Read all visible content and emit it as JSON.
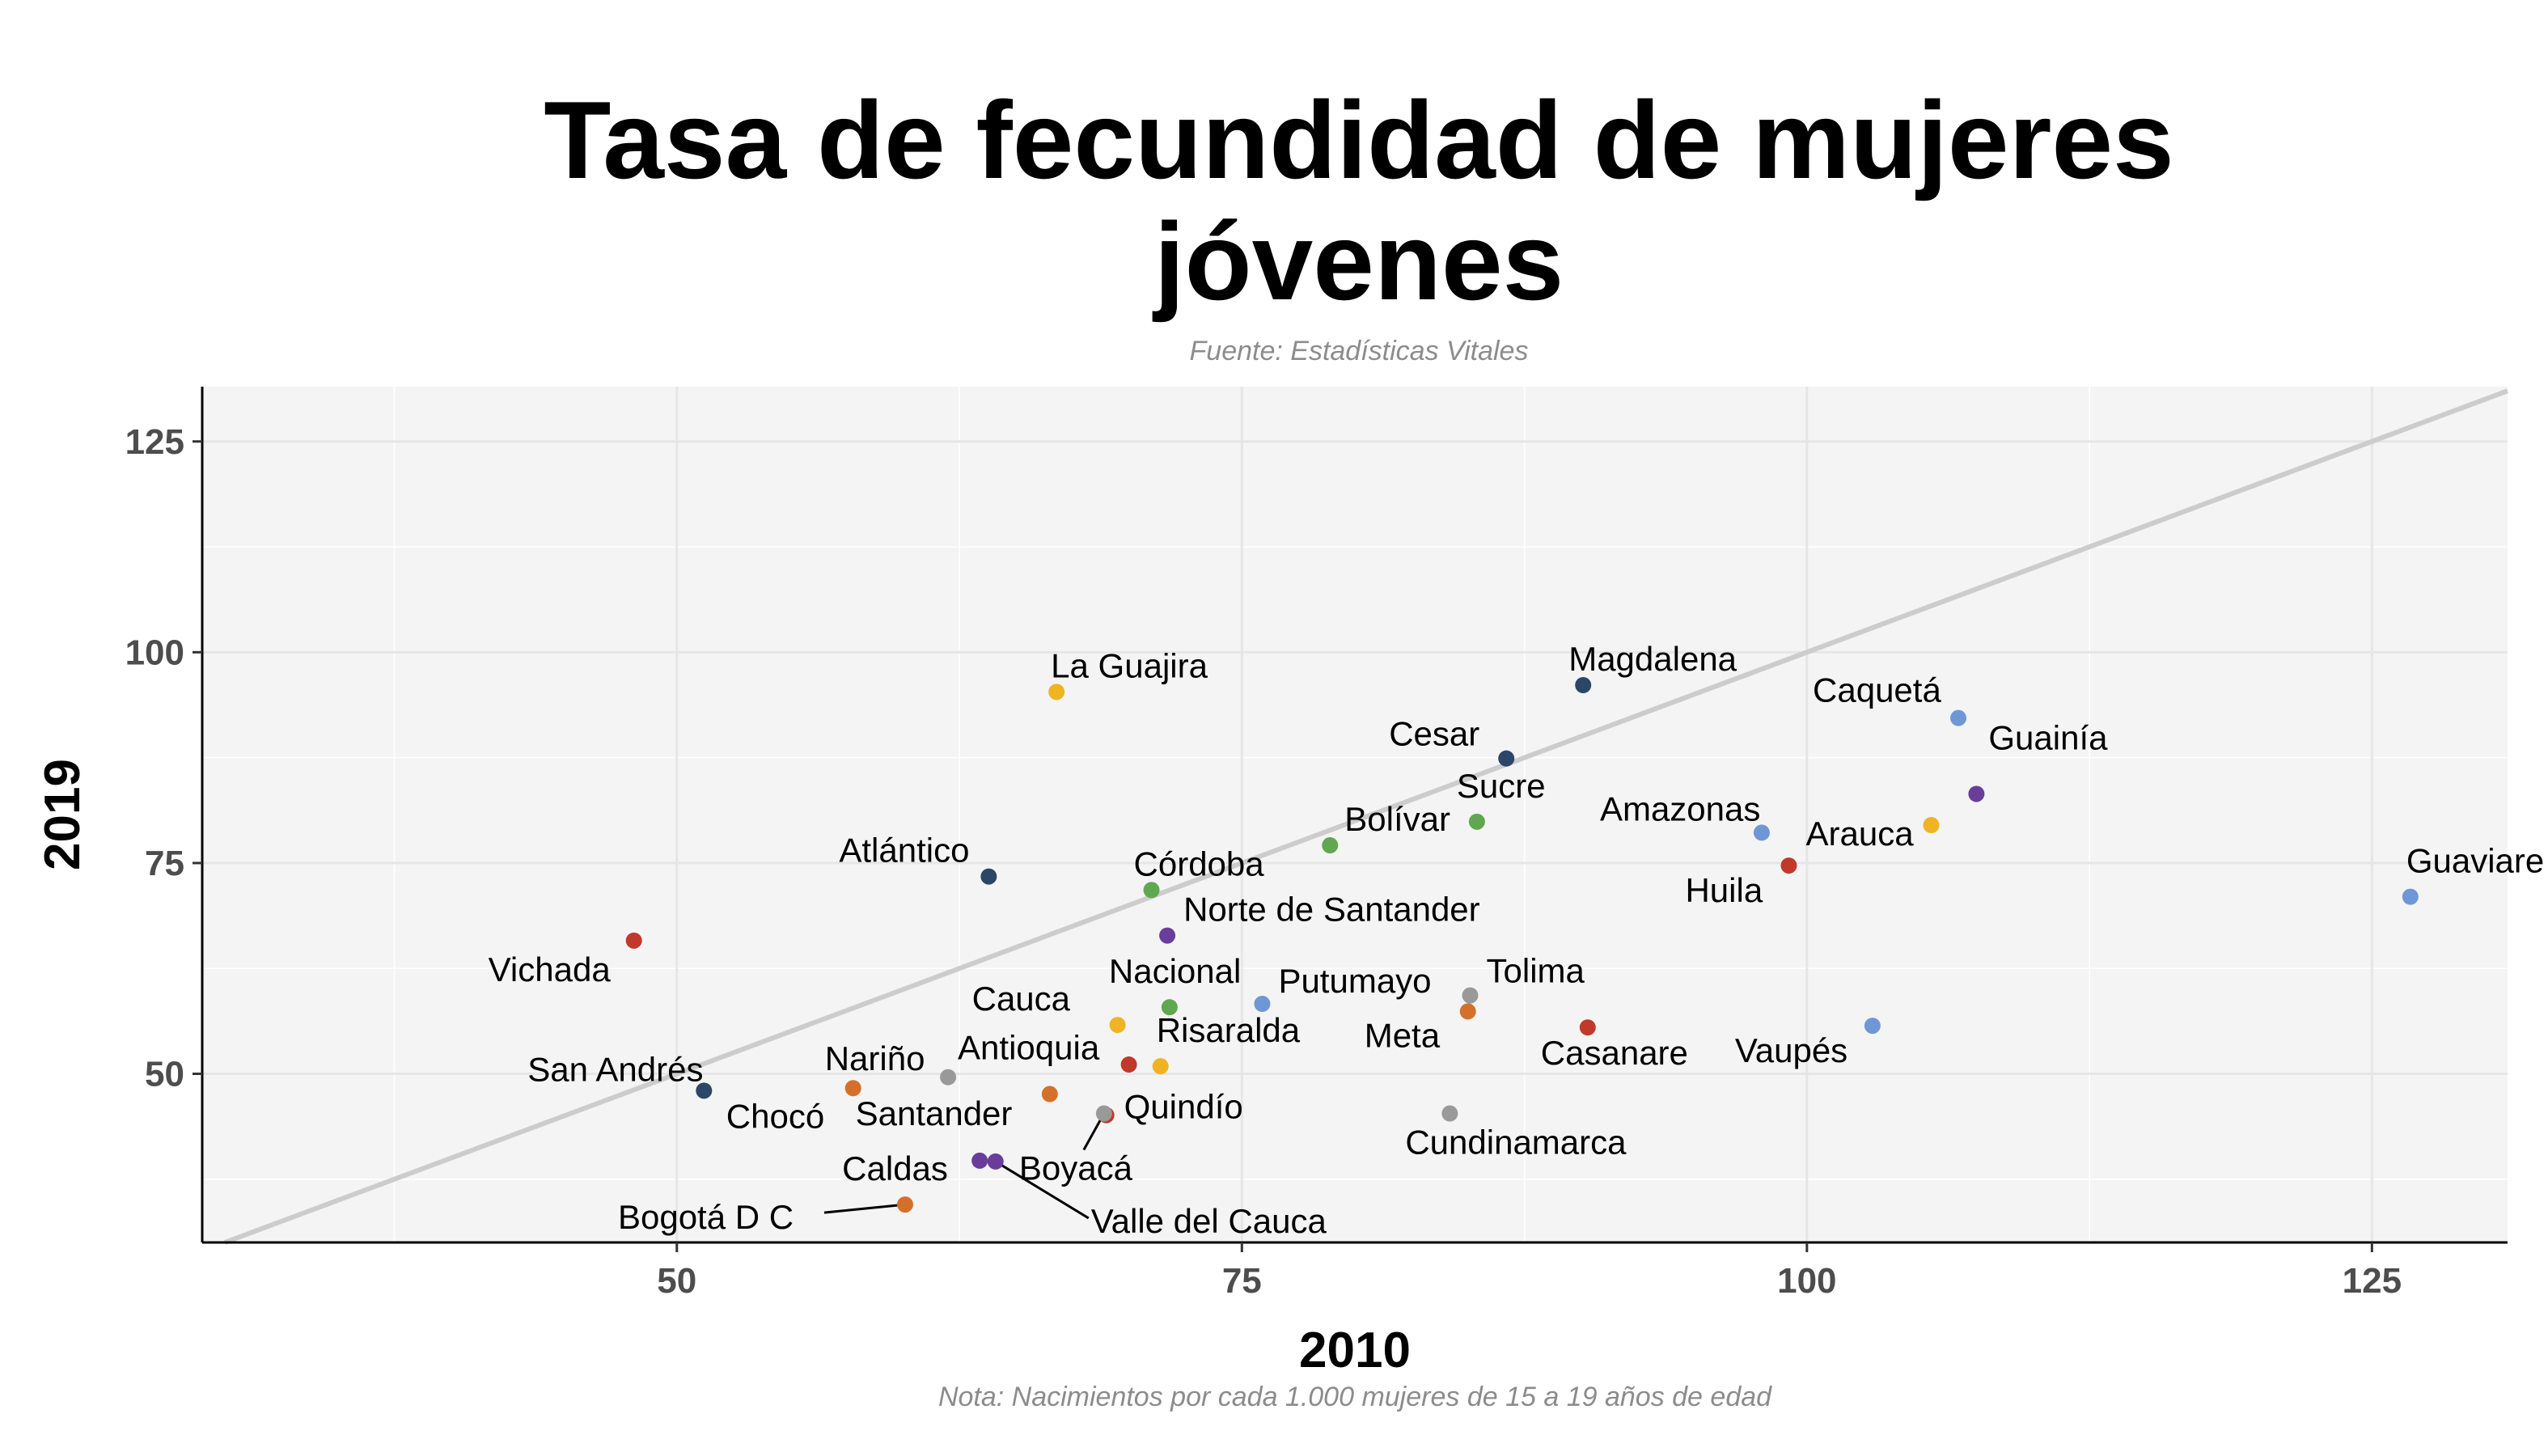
{
  "chart_data": {
    "type": "scatter",
    "title_lines": [
      "Tasa de fecundidad de mujeres",
      "jóvenes"
    ],
    "subtitle": "Fuente: Estadísticas Vitales",
    "caption": "Nota: Nacimientos por cada 1.000 mujeres de 15 a 19 años de edad",
    "xlabel": "2010",
    "ylabel": "2019",
    "xlim": [
      29,
      131
    ],
    "ylim": [
      30,
      131.5
    ],
    "xticks": [
      50,
      75,
      100,
      125
    ],
    "yticks": [
      50,
      75,
      100,
      125
    ],
    "grid": true,
    "reference_line": "y = x",
    "points": [
      {
        "name": "Guaviare",
        "x": 126.7,
        "y": 71,
        "color": "#6f97d6"
      },
      {
        "name": "Caquetá",
        "x": 106.7,
        "y": 92.2,
        "color": "#6f97d6"
      },
      {
        "name": "Guainía",
        "x": 107.5,
        "y": 83.2,
        "color": "#6a3d9a"
      },
      {
        "name": "Arauca",
        "x": 105.5,
        "y": 79.5,
        "color": "#f0b323"
      },
      {
        "name": "Huila",
        "x": 99.2,
        "y": 74.7,
        "color": "#c0392b"
      },
      {
        "name": "Amazonas",
        "x": 98,
        "y": 78.6,
        "color": "#6f97d6"
      },
      {
        "name": "Vaupés",
        "x": 102.9,
        "y": 55.7,
        "color": "#6f97d6"
      },
      {
        "name": "Magdalena",
        "x": 90.1,
        "y": 96.1,
        "color": "#2c4668"
      },
      {
        "name": "Cesar",
        "x": 86.7,
        "y": 87.4,
        "color": "#2c4668"
      },
      {
        "name": "Sucre",
        "x": 85.4,
        "y": 79.9,
        "color": "#5fa84f"
      },
      {
        "name": "Bolívar",
        "x": 78.9,
        "y": 77.1,
        "color": "#5fa84f"
      },
      {
        "name": "La Guajira",
        "x": 66.8,
        "y": 95.3,
        "color": "#f0b323"
      },
      {
        "name": "Atlántico",
        "x": 63.8,
        "y": 73.4,
        "color": "#2c4668"
      },
      {
        "name": "Córdoba",
        "x": 71,
        "y": 71.8,
        "color": "#5fa84f"
      },
      {
        "name": "Norte de Santander",
        "x": 71.7,
        "y": 66.4,
        "color": "#6a3d9a"
      },
      {
        "name": "Vichada",
        "x": 48.1,
        "y": 65.8,
        "color": "#c0392b"
      },
      {
        "name": "Nacional",
        "x": 71.8,
        "y": 57.9,
        "color": "#5fa84f"
      },
      {
        "name": "Putumayo",
        "x": 75.9,
        "y": 58.3,
        "color": "#6f97d6"
      },
      {
        "name": "Tolima",
        "x": 85.1,
        "y": 59.3,
        "color": "#999999"
      },
      {
        "name": "Meta",
        "x": 85,
        "y": 57.4,
        "color": "#d4702b"
      },
      {
        "name": "Casanare",
        "x": 90.3,
        "y": 55.5,
        "color": "#c0392b"
      },
      {
        "name": "Cauca",
        "x": 69.5,
        "y": 55.8,
        "color": "#f0b323"
      },
      {
        "name": "Risaralda",
        "x": 71.4,
        "y": 50.9,
        "color": "#f0b323"
      },
      {
        "name": "Santander",
        "x": 70,
        "y": 51.1,
        "color": "#c0392b"
      },
      {
        "name": "Antioquia",
        "x": 62,
        "y": 49.6,
        "color": "#999999"
      },
      {
        "name": "Nariño",
        "x": 57.8,
        "y": 48.3,
        "color": "#d4702b"
      },
      {
        "name": "San Andrés",
        "x": 51.2,
        "y": 48,
        "color": "#2c4668"
      },
      {
        "name": "Chocó",
        "x": 66.5,
        "y": 47.6,
        "color": "#d4702b"
      },
      {
        "name": "Quindío",
        "x": 69,
        "y": 45.1,
        "color": "#c0392b"
      },
      {
        "name": "Boyacá",
        "x": 68.9,
        "y": 45.3,
        "color": "#999999"
      },
      {
        "name": "Cundinamarca",
        "x": 84.2,
        "y": 45.3,
        "color": "#999999"
      },
      {
        "name": "Caldas",
        "x": 63.4,
        "y": 39.7,
        "color": "#6a3d9a"
      },
      {
        "name": "Valle del Cauca",
        "x": 64.1,
        "y": 39.6,
        "color": "#6a3d9a"
      },
      {
        "name": "Bogotá D C",
        "x": 60.1,
        "y": 34.5,
        "color": "#d4702b"
      }
    ]
  }
}
